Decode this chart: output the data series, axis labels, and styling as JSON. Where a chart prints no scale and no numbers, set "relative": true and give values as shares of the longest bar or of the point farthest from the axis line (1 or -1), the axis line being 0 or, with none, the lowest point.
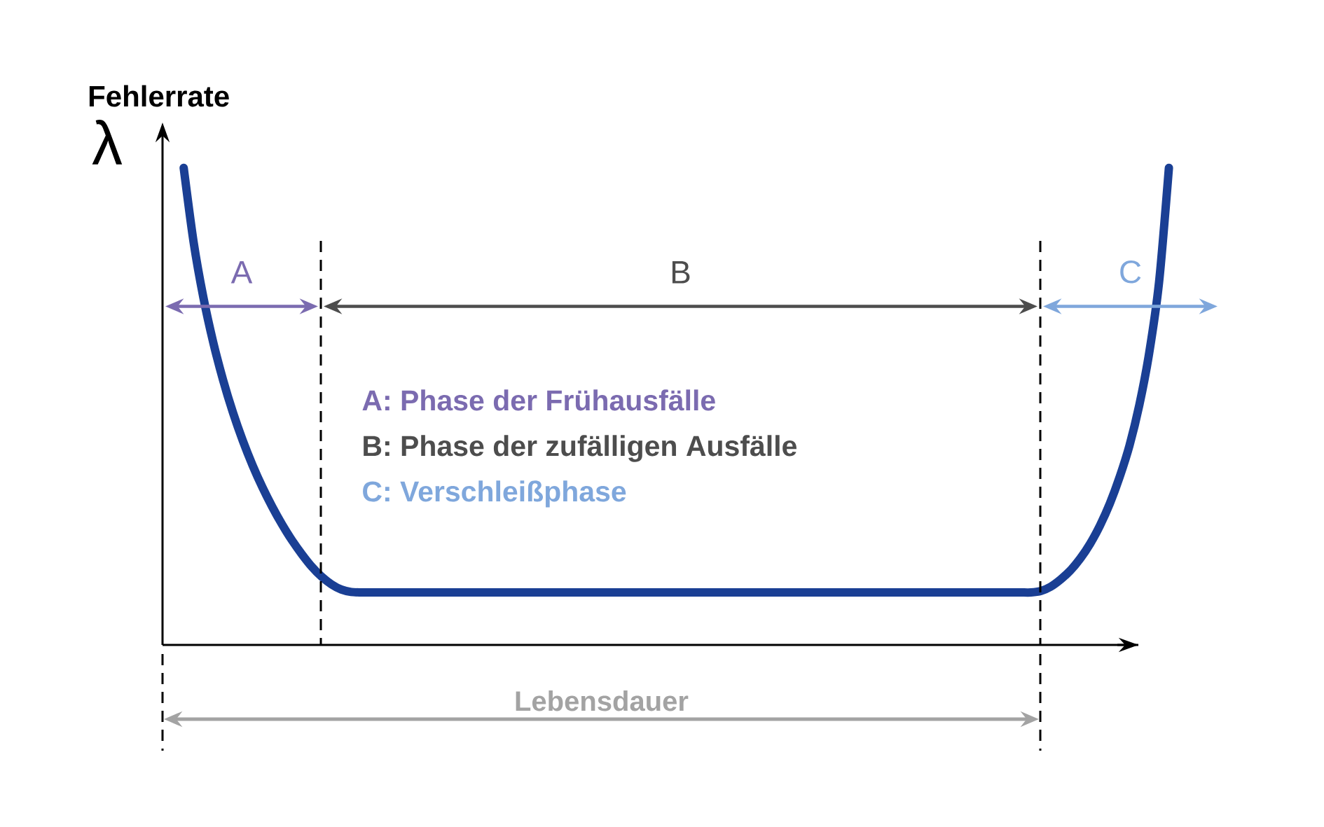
{
  "chart_data": {
    "type": "line",
    "ylabel": "Fehlerrate",
    "xlabel": "Lebensdauer",
    "annotations": [
      "λ",
      "A",
      "B",
      "C",
      "A: Phase der Frühausfälle",
      "B: Phase der zufälligen Ausfälle",
      "C: Verschleißphase"
    ],
    "categories": [
      null,
      null,
      null,
      null,
      null,
      null,
      null,
      null,
      null,
      null,
      null,
      null,
      null,
      null,
      null,
      null,
      null,
      null,
      null,
      null,
      null,
      null,
      null,
      null,
      null,
      null,
      null,
      null,
      null,
      null,
      null,
      null,
      null,
      null,
      null,
      null,
      null,
      null,
      null,
      null,
      null,
      null,
      null,
      null,
      null,
      null,
      null,
      null,
      null,
      null,
      null,
      null,
      null,
      null,
      null,
      null,
      null,
      null,
      null,
      null,
      null,
      null,
      null,
      null,
      null,
      null,
      null,
      null,
      null,
      null,
      null,
      null,
      null,
      null,
      null,
      null,
      null,
      null,
      null,
      null,
      null,
      null,
      null,
      null,
      null,
      null,
      null,
      null,
      null,
      null,
      null,
      null,
      null,
      null,
      null,
      null,
      null,
      null,
      null,
      null,
      null
    ],
    "values": [
      1.0,
      0.845,
      0.728,
      0.634,
      0.555,
      0.487,
      0.428,
      0.376,
      0.33,
      0.289,
      0.252,
      0.219,
      0.19,
      0.164,
      0.143,
      0.127,
      0.116,
      0.111,
      0.11,
      0.11,
      0.11,
      0.11,
      0.11,
      0.11,
      0.11,
      0.11,
      0.11,
      0.11,
      0.11,
      0.11,
      0.11,
      0.11,
      0.11,
      0.11,
      0.11,
      0.11,
      0.11,
      0.11,
      0.11,
      0.11,
      0.11,
      0.11,
      0.11,
      0.11,
      0.11,
      0.11,
      0.11,
      0.11,
      0.11,
      0.11,
      0.11,
      0.11,
      0.11,
      0.11,
      0.11,
      0.11,
      0.11,
      0.11,
      0.11,
      0.11,
      0.11,
      0.11,
      0.11,
      0.11,
      0.11,
      0.11,
      0.11,
      0.11,
      0.11,
      0.11,
      0.11,
      0.11,
      0.11,
      0.11,
      0.11,
      0.11,
      0.11,
      0.11,
      0.11,
      0.11,
      0.11,
      0.11,
      0.11,
      0.11,
      0.11,
      0.11,
      0.11,
      0.113,
      0.122,
      0.137,
      0.156,
      0.181,
      0.212,
      0.25,
      0.296,
      0.352,
      0.418,
      0.503,
      0.612,
      0.76,
      1.0
    ],
    "color": "#1a3f94",
    "relative": true
  }
}
